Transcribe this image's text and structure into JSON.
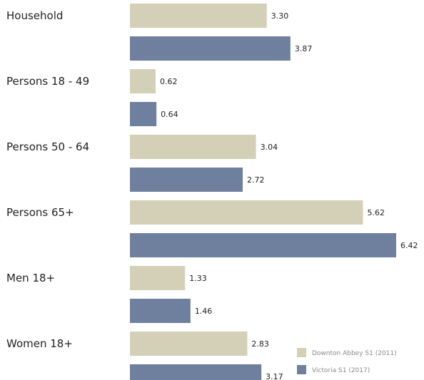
{
  "chart_data": {
    "type": "bar",
    "orientation": "horizontal",
    "categories": [
      "Household",
      "Persons 18 - 49",
      "Persons 50 - 64",
      "Persons 65+",
      "Men 18+",
      "Women 18+"
    ],
    "series": [
      {
        "name": "Downton Abbey S1 (2011)",
        "values": [
          3.3,
          0.62,
          3.04,
          5.62,
          1.33,
          2.83
        ]
      },
      {
        "name": "Victoria S1 (2017)",
        "values": [
          3.87,
          0.64,
          2.72,
          6.42,
          1.46,
          3.17
        ]
      }
    ],
    "value_labels": [
      [
        "3.30",
        "0.62",
        "3.04",
        "5.62",
        "1.33",
        "2.83"
      ],
      [
        "3.87",
        "0.64",
        "2.72",
        "6.42",
        "1.46",
        "3.17"
      ]
    ],
    "colors": [
      "#d4d0b8",
      "#6f7f9e"
    ],
    "legend_position": "bottom-right",
    "grid": false,
    "xlim": [
      0,
      6.42
    ]
  }
}
